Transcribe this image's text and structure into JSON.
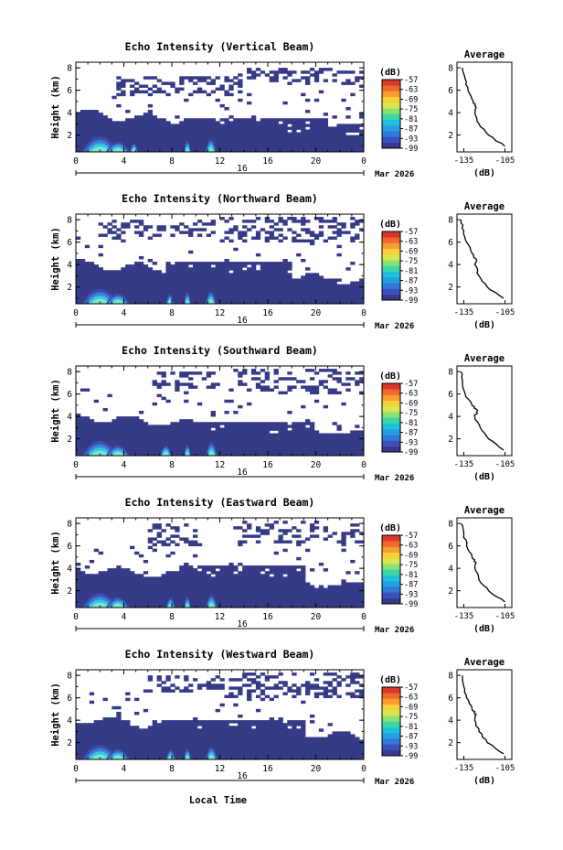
{
  "figure": {
    "date_label": "Mar 2026",
    "bottom_xlabel": "Local Time"
  },
  "chart_data": [
    {
      "type": "heatmap",
      "title": "Echo Intensity (Vertical Beam)",
      "ylabel": "Height (km)",
      "xlabel": "",
      "x_ticks": [
        "0",
        "4",
        "8",
        "12",
        "16",
        "20",
        "0"
      ],
      "x_range": [
        0,
        24
      ],
      "y_ticks": [
        "2",
        "4",
        "6",
        "8"
      ],
      "y_range": [
        0.5,
        8.5
      ],
      "date_day": "16",
      "colorbar": {
        "unit": "(dB)",
        "ticks": [
          "-57",
          "-63",
          "-69",
          "-75",
          "-81",
          "-87",
          "-93",
          "-99"
        ],
        "range": [
          -99,
          -57
        ]
      },
      "profile": {
        "title": "Average",
        "xlabel": "(dB)",
        "x_ticks": [
          "-135",
          "-105"
        ],
        "x_range": [
          -140,
          -100
        ],
        "y_ticks": [
          "2",
          "4",
          "6",
          "8"
        ],
        "height": [
          1.0,
          2.0,
          3.0,
          4.0,
          4.5,
          5.0,
          6.0,
          7.0,
          8.0
        ],
        "db": [
          -105,
          -117,
          -124,
          -127,
          -126,
          -128,
          -132,
          -134,
          -136
        ]
      },
      "low_layer_top_km": 3.9,
      "mid_layer": [
        [
          9,
          21,
          2.6,
          3.4
        ],
        [
          21,
          24,
          2.2,
          3.0
        ]
      ],
      "upper_layer": [
        [
          3.5,
          14,
          5.6,
          7.2
        ],
        [
          13,
          24,
          6.4,
          8.0
        ]
      ],
      "cores": [
        [
          0.5,
          3.5,
          2.9
        ],
        [
          2.5,
          4.5,
          2.0
        ],
        [
          4.5,
          5.2,
          1.7
        ],
        [
          9.0,
          9.6,
          2.2
        ],
        [
          10.8,
          11.7,
          2.5
        ]
      ]
    },
    {
      "type": "heatmap",
      "title": "Echo Intensity (Northward Beam)",
      "ylabel": "Height (km)",
      "xlabel": "",
      "x_ticks": [
        "0",
        "4",
        "8",
        "12",
        "16",
        "20",
        "0"
      ],
      "x_range": [
        0,
        24
      ],
      "y_ticks": [
        "2",
        "4",
        "6",
        "8"
      ],
      "y_range": [
        0.5,
        8.5
      ],
      "date_day": "16",
      "colorbar": {
        "unit": "(dB)",
        "ticks": [
          "-57",
          "-63",
          "-69",
          "-75",
          "-81",
          "-87",
          "-93",
          "-99"
        ],
        "range": [
          -99,
          -57
        ]
      },
      "profile": {
        "title": "Average",
        "xlabel": "(dB)",
        "x_ticks": [
          "-135",
          "-105"
        ],
        "x_range": [
          -140,
          -100
        ],
        "y_ticks": [
          "2",
          "4",
          "6",
          "8"
        ],
        "height": [
          1.0,
          2.0,
          3.0,
          4.0,
          4.5,
          5.0,
          6.0,
          7.0,
          8.0
        ],
        "db": [
          -106,
          -118,
          -124,
          -127,
          -126,
          -129,
          -133,
          -135,
          -137
        ]
      },
      "low_layer_top_km": 4.1,
      "mid_layer": [
        [
          7.5,
          18,
          2.5,
          4.2
        ],
        [
          18,
          22,
          1.8,
          2.8
        ]
      ],
      "upper_layer": [
        [
          2,
          12,
          6.5,
          8.0
        ],
        [
          12,
          24,
          6.0,
          8.2
        ]
      ],
      "cores": [
        [
          0.5,
          3.5,
          2.8
        ],
        [
          2.5,
          4.5,
          2.0
        ],
        [
          7.5,
          8.2,
          1.8
        ],
        [
          9.0,
          9.6,
          2.2
        ],
        [
          10.8,
          11.7,
          2.4
        ]
      ]
    },
    {
      "type": "heatmap",
      "title": "Echo Intensity (Southward Beam)",
      "ylabel": "Height (km)",
      "xlabel": "",
      "x_ticks": [
        "0",
        "4",
        "8",
        "12",
        "16",
        "20",
        "0"
      ],
      "x_range": [
        0,
        24
      ],
      "y_ticks": [
        "2",
        "4",
        "6",
        "8"
      ],
      "y_range": [
        0.5,
        8.5
      ],
      "date_day": "16",
      "colorbar": {
        "unit": "(dB)",
        "ticks": [
          "-57",
          "-63",
          "-69",
          "-75",
          "-81",
          "-87",
          "-93",
          "-99"
        ],
        "range": [
          -99,
          -57
        ]
      },
      "profile": {
        "title": "Average",
        "xlabel": "(dB)",
        "x_ticks": [
          "-135",
          "-105"
        ],
        "x_range": [
          -140,
          -100
        ],
        "y_ticks": [
          "2",
          "4",
          "6",
          "8"
        ],
        "height": [
          1.0,
          2.0,
          3.0,
          4.0,
          4.5,
          5.0,
          6.0,
          7.0,
          8.0
        ],
        "db": [
          -106,
          -117,
          -123,
          -127,
          -125,
          -129,
          -134,
          -136,
          -137
        ]
      },
      "low_layer_top_km": 4.0,
      "mid_layer": [
        [
          8.5,
          20,
          2.3,
          3.6
        ],
        [
          20,
          23,
          1.6,
          2.4
        ]
      ],
      "upper_layer": [
        [
          6.5,
          12,
          6.6,
          8.0
        ],
        [
          13,
          24,
          6.0,
          8.2
        ]
      ],
      "cores": [
        [
          0.5,
          3.5,
          2.8
        ],
        [
          2.5,
          4.5,
          2.0
        ],
        [
          7.0,
          8.0,
          2.0
        ],
        [
          9.0,
          9.6,
          2.1
        ],
        [
          10.8,
          11.8,
          2.5
        ]
      ]
    },
    {
      "type": "heatmap",
      "title": "Echo Intensity (Eastward Beam)",
      "ylabel": "Height (km)",
      "xlabel": "",
      "x_ticks": [
        "0",
        "4",
        "8",
        "12",
        "16",
        "20",
        "0"
      ],
      "x_range": [
        0,
        24
      ],
      "y_ticks": [
        "2",
        "4",
        "6",
        "8"
      ],
      "y_range": [
        0.5,
        8.5
      ],
      "date_day": "16",
      "colorbar": {
        "unit": "(dB)",
        "ticks": [
          "-57",
          "-63",
          "-69",
          "-75",
          "-81",
          "-87",
          "-93",
          "-99"
        ],
        "range": [
          -99,
          -57
        ]
      },
      "profile": {
        "title": "Average",
        "xlabel": "(dB)",
        "x_ticks": [
          "-135",
          "-105"
        ],
        "x_range": [
          -140,
          -100
        ],
        "y_ticks": [
          "2",
          "4",
          "6",
          "8"
        ],
        "height": [
          1.0,
          2.0,
          3.0,
          4.0,
          4.5,
          5.0,
          6.0,
          7.0,
          8.0
        ],
        "db": [
          -105,
          -117,
          -124,
          -127,
          -126,
          -129,
          -133,
          -135,
          -137
        ]
      },
      "low_layer_top_km": 4.0,
      "mid_layer": [
        [
          8.5,
          19,
          2.5,
          4.2
        ],
        [
          19,
          22.5,
          1.6,
          2.5
        ]
      ],
      "upper_layer": [
        [
          6,
          10,
          6.0,
          8.0
        ],
        [
          13,
          24,
          6.2,
          8.2
        ]
      ],
      "cores": [
        [
          0.5,
          3.5,
          2.7
        ],
        [
          2.5,
          4.5,
          2.0
        ],
        [
          7.5,
          8.3,
          1.9
        ],
        [
          9.0,
          9.6,
          2.1
        ],
        [
          10.8,
          11.8,
          2.4
        ]
      ]
    },
    {
      "type": "heatmap",
      "title": "Echo Intensity (Westward Beam)",
      "ylabel": "Height (km)",
      "xlabel": "",
      "x_ticks": [
        "0",
        "4",
        "8",
        "12",
        "16",
        "20",
        "0"
      ],
      "x_range": [
        0,
        24
      ],
      "y_ticks": [
        "2",
        "4",
        "6",
        "8"
      ],
      "y_range": [
        0.5,
        8.5
      ],
      "date_day": "16",
      "colorbar": {
        "unit": "(dB)",
        "ticks": [
          "-57",
          "-63",
          "-69",
          "-75",
          "-81",
          "-87",
          "-93",
          "-99"
        ],
        "range": [
          -99,
          -57
        ]
      },
      "profile": {
        "title": "Average",
        "xlabel": "(dB)",
        "x_ticks": [
          "-135",
          "-105"
        ],
        "x_range": [
          -140,
          -100
        ],
        "y_ticks": [
          "2",
          "4",
          "6",
          "8"
        ],
        "height": [
          1.0,
          2.0,
          3.0,
          4.0,
          4.5,
          5.0,
          6.0,
          7.0,
          8.0
        ],
        "db": [
          -106,
          -118,
          -124,
          -127,
          -126,
          -129,
          -133,
          -135,
          -136
        ]
      },
      "low_layer_top_km": 4.1,
      "mid_layer": [
        [
          8,
          19,
          2.6,
          4.0
        ],
        [
          19,
          22.5,
          1.6,
          2.5
        ]
      ],
      "upper_layer": [
        [
          5.5,
          12,
          6.5,
          8.0
        ],
        [
          12,
          24,
          6.0,
          8.2
        ]
      ],
      "cores": [
        [
          0.5,
          3.5,
          2.7
        ],
        [
          2.5,
          4.5,
          2.0
        ],
        [
          7.5,
          8.3,
          1.9
        ],
        [
          9.0,
          9.6,
          2.1
        ],
        [
          10.8,
          11.8,
          2.4
        ]
      ]
    }
  ]
}
